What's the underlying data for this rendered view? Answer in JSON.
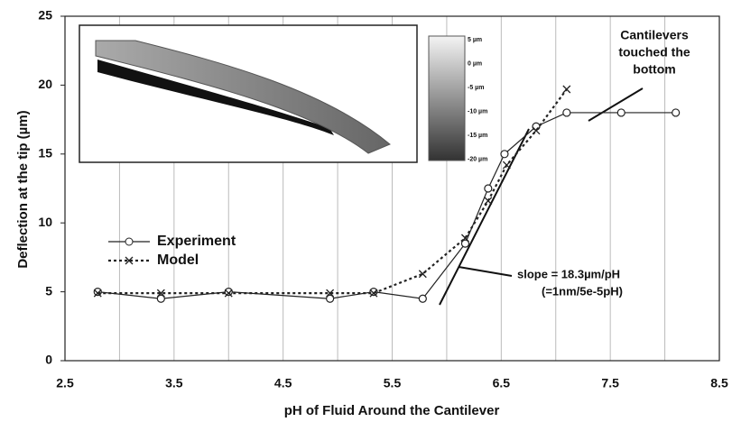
{
  "chart_data": {
    "type": "line",
    "x_label": "pH of Fluid Around the Cantilever",
    "y_label": "Deflection at the tip (µm)",
    "xlim": [
      2.5,
      8.5
    ],
    "ylim": [
      0,
      25
    ],
    "xticks": [
      2.5,
      3.5,
      4.5,
      5.5,
      6.5,
      7.5,
      8.5
    ],
    "x_minor_grid": [
      3,
      4,
      5,
      6,
      7,
      8
    ],
    "yticks": [
      0,
      5,
      10,
      15,
      20,
      25
    ],
    "grid": "x",
    "legend": "left",
    "series": [
      {
        "name": "Experiment",
        "color": "#222222",
        "marker": "circle",
        "dash": false,
        "x": [
          2.8,
          3.38,
          4.0,
          4.93,
          5.33,
          5.78,
          6.17,
          6.38,
          6.53,
          6.82,
          7.1,
          7.6,
          8.1
        ],
        "values": [
          5,
          4.5,
          5,
          4.5,
          5,
          4.5,
          8.5,
          12.5,
          15,
          17,
          18,
          18,
          18
        ]
      },
      {
        "name": "Model",
        "color": "#222222",
        "marker": "x",
        "dash": true,
        "x": [
          2.8,
          3.38,
          4.0,
          4.93,
          5.33,
          5.78,
          6.17,
          6.38,
          6.55,
          6.82,
          7.1
        ],
        "values": [
          4.9,
          4.9,
          4.9,
          4.9,
          4.9,
          6.3,
          8.9,
          11.6,
          14.2,
          16.7,
          19.7
        ]
      }
    ],
    "annotations": [
      {
        "text": [
          "Cantilevers",
          "touched the",
          "bottom"
        ]
      },
      {
        "text": [
          "slope = 18.3µm/pH",
          "(=1nm/5e-5pH)"
        ]
      }
    ],
    "inset_scale_labels": [
      "5 µm",
      "0 µm",
      "-5 µm",
      "-10 µm",
      "-15 µm",
      "-20 µm"
    ]
  }
}
